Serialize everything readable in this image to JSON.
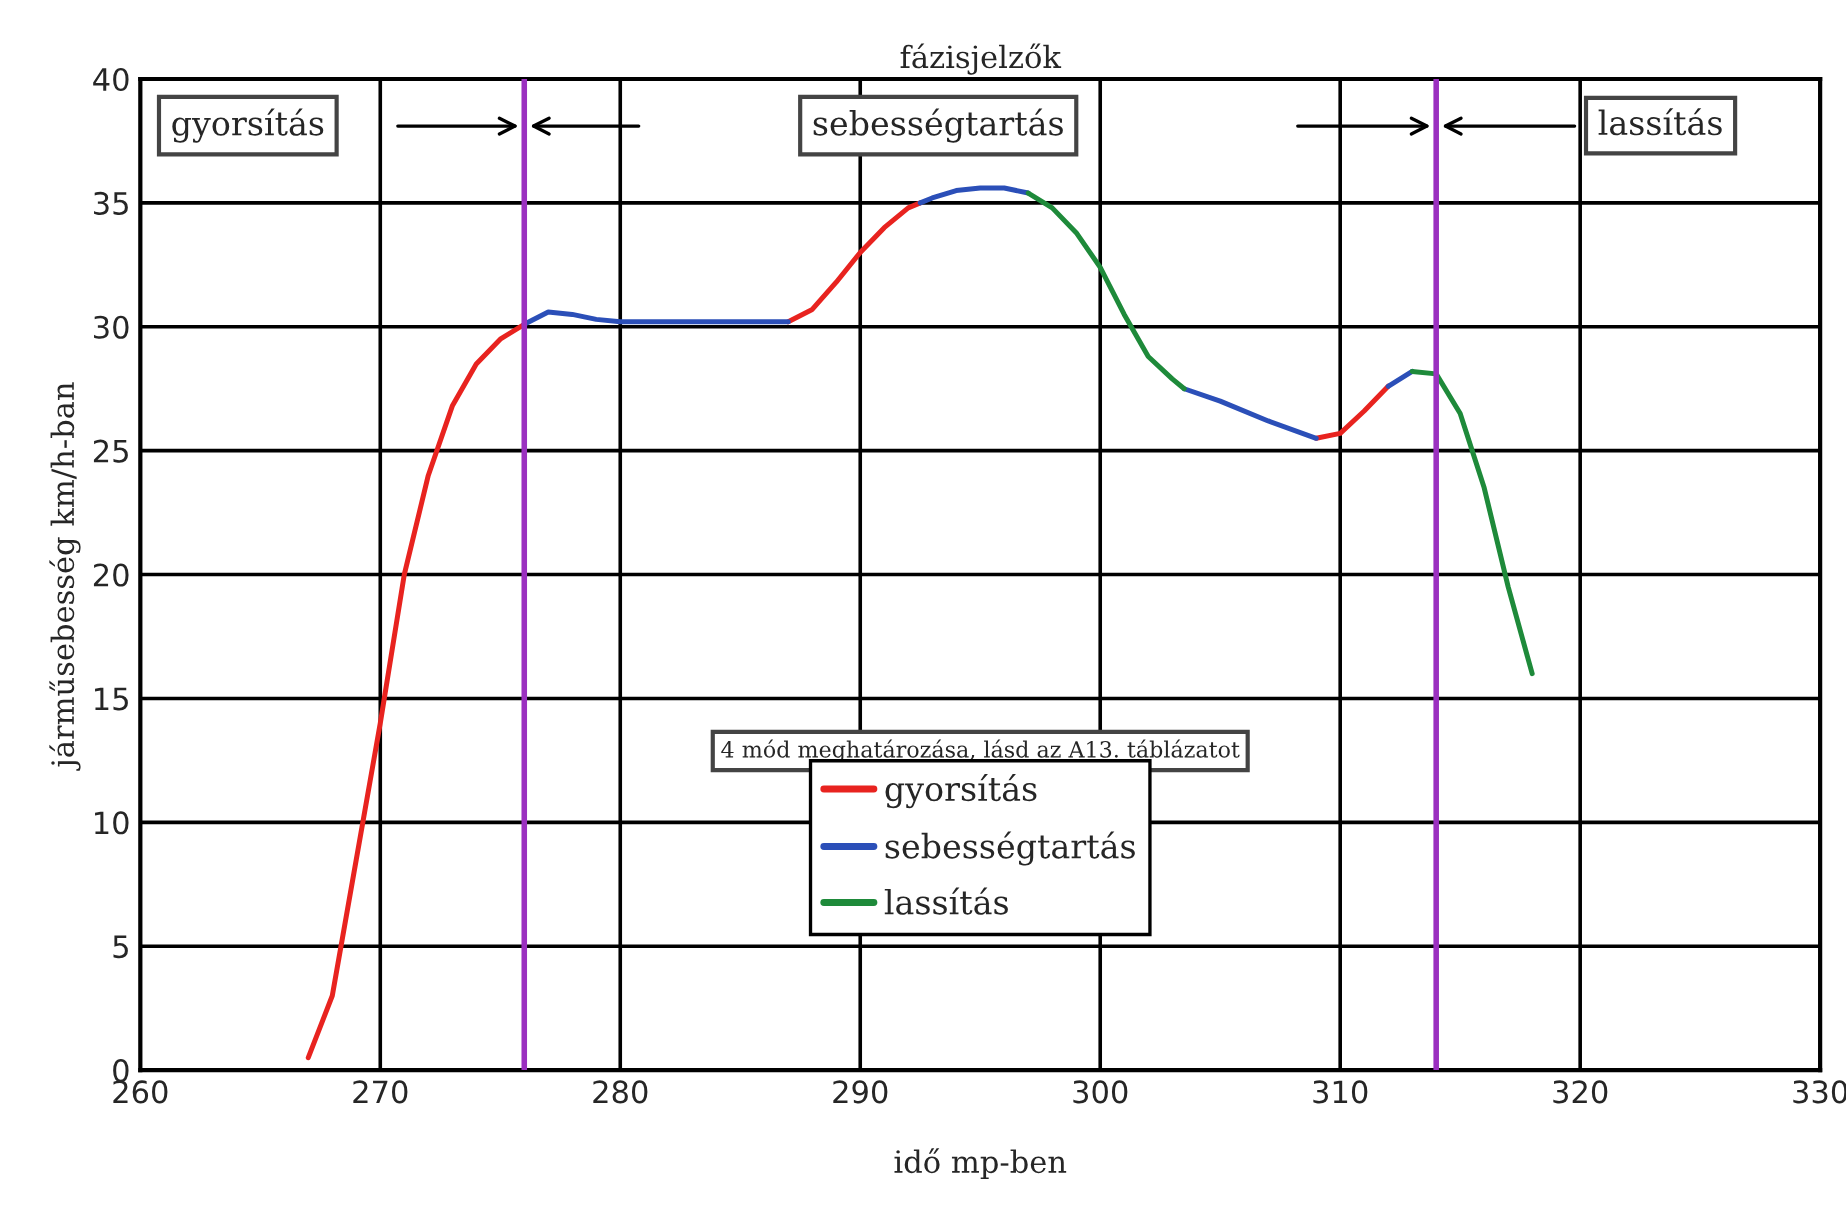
{
  "chart_data": {
    "type": "line",
    "title": "fázisjelzők",
    "xlabel": "idő mp-ben",
    "ylabel": "járműsebesség km/h-ban",
    "series": [
      {
        "name": "gyorsítás",
        "color": "#e8231f",
        "x": [
          267,
          268,
          269,
          270,
          271,
          272,
          273,
          274,
          275,
          276,
          281,
          287,
          288,
          289,
          290,
          291,
          292,
          292.5,
          300,
          309,
          310,
          311,
          312
        ],
        "values": [
          0.5,
          3,
          8.5,
          14,
          20,
          24,
          26.8,
          28.5,
          29.5,
          30.1,
          null,
          30.2,
          30.7,
          31.8,
          33,
          34,
          34.8,
          35,
          null,
          25.5,
          25.7,
          26.6,
          27.6
        ]
      },
      {
        "name": "sebességtartás",
        "color": "#2b4fb8",
        "x": [
          276,
          277,
          278,
          279,
          280,
          285,
          287,
          290,
          292.5,
          293,
          294,
          295,
          296,
          297,
          300,
          303.5,
          305,
          307,
          309,
          310,
          312,
          313
        ],
        "values": [
          30.1,
          30.6,
          30.5,
          30.3,
          30.2,
          30.2,
          30.2,
          null,
          35,
          35.2,
          35.5,
          35.6,
          35.6,
          35.4,
          null,
          27.5,
          27,
          26.2,
          25.5,
          null,
          27.6,
          28.2
        ]
      },
      {
        "name": "lassítás",
        "color": "#1e8a3a",
        "x": [
          297,
          298,
          299,
          300,
          301,
          302,
          303,
          303.5,
          308,
          313,
          314,
          315,
          316,
          317,
          318
        ],
        "values": [
          35.4,
          34.8,
          33.8,
          32.4,
          30.5,
          28.8,
          27.9,
          27.5,
          null,
          28.2,
          28.1,
          26.5,
          23.5,
          19.5,
          16
        ]
      }
    ],
    "ref_lines": [
      {
        "axis": "x",
        "value": 276,
        "color": "#9b30c0"
      },
      {
        "axis": "x",
        "value": 314,
        "color": "#9b30c0"
      }
    ],
    "annotations": [
      "gyorsítás",
      "sebességtartás",
      "lassítás",
      "4 mód meghatározása, lásd az A13. táblázatot"
    ],
    "xlim": [
      260,
      330
    ],
    "xticks": [
      260,
      270,
      280,
      290,
      300,
      310,
      320,
      330
    ],
    "ylim": [
      0,
      40
    ],
    "yticks": [
      0,
      5,
      10,
      15,
      20,
      25,
      30,
      35,
      40
    ],
    "grid": true,
    "legend": "bottom",
    "line_style": "solid",
    "marker": "none"
  }
}
